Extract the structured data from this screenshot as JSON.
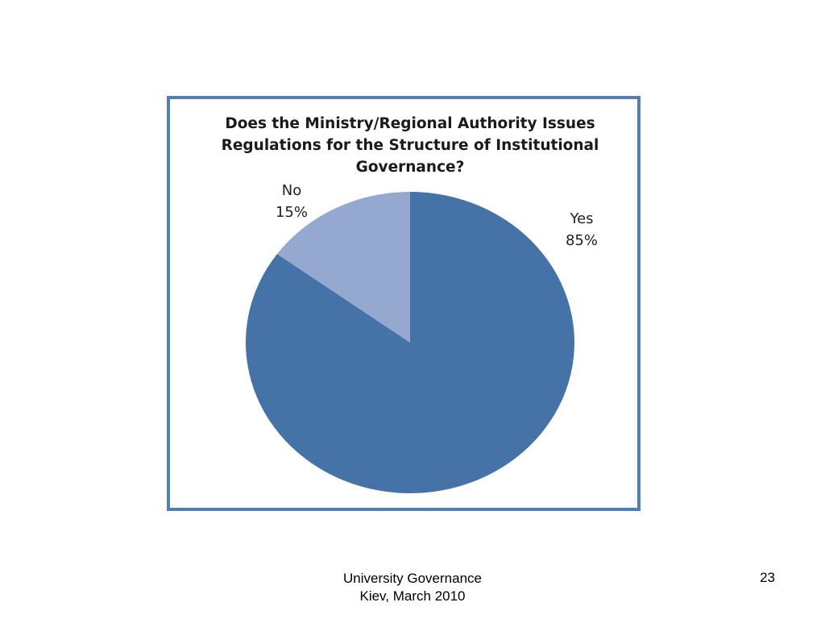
{
  "chart_data": {
    "type": "pie",
    "title": "Does the Ministry/Regional Authority Issues Regulations for the Structure of Institutional Governance?",
    "categories": [
      "Yes",
      "No"
    ],
    "values": [
      85,
      15
    ],
    "value_labels": [
      "85%",
      "15%"
    ],
    "colors": [
      "#4673a7",
      "#95a9d0"
    ]
  },
  "footer": {
    "lines": [
      "University Governance",
      "Kiev, March 2010"
    ],
    "page": "23"
  }
}
